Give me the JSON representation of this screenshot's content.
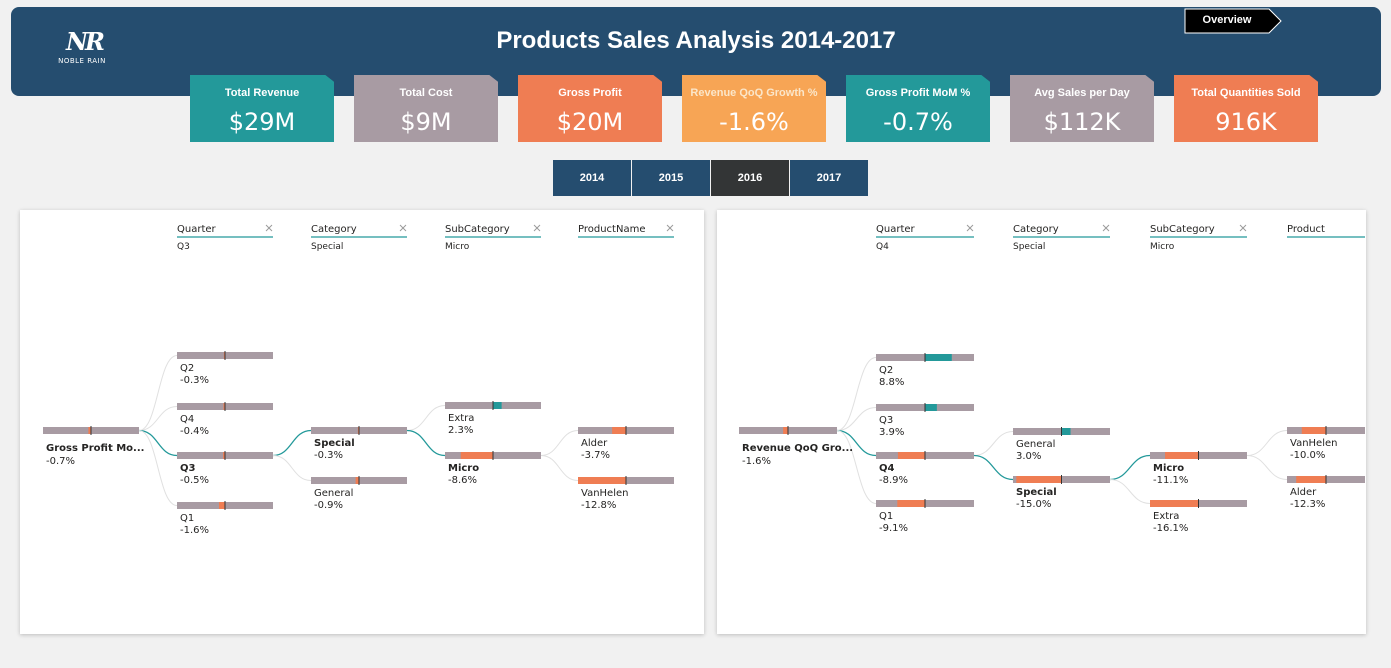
{
  "header": {
    "title": "Products Sales Analysis 2014-2017",
    "logo": {
      "mark": "NR",
      "brand": "NOBLE RAIN"
    },
    "overview_label": "Overview"
  },
  "kpis": [
    {
      "label": "Total Revenue",
      "value": "$29M",
      "color": "#23999a",
      "label_color": "#ffffff"
    },
    {
      "label": "Total Cost",
      "value": "$9M",
      "color": "#a89ba3",
      "label_color": "#ffffff"
    },
    {
      "label": "Gross Profit",
      "value": "$20M",
      "color": "#ef7d53",
      "label_color": "#ffffff"
    },
    {
      "label": "Revenue QoQ Growth %",
      "value": "-1.6%",
      "color": "#f7a555",
      "label_color": "#fbe6c9"
    },
    {
      "label": "Gross Profit MoM %",
      "value": "-0.7%",
      "color": "#23999a",
      "label_color": "#ffffff"
    },
    {
      "label": "Avg Sales per Day",
      "value": "$112K",
      "color": "#a89ba3",
      "label_color": "#ffffff"
    },
    {
      "label": "Total Quantities Sold",
      "value": "916K",
      "color": "#ef7d53",
      "label_color": "#ffffff"
    }
  ],
  "year_tabs": [
    "2014",
    "2015",
    "2016",
    "2017"
  ],
  "selected_year": "2016",
  "colors": {
    "negative": "#ef7d53",
    "positive": "#23999a",
    "track": "#a89ba3",
    "link": "#23999a",
    "link_inactive": "#e0e0e0"
  },
  "trees": [
    {
      "root": {
        "label": "Gross Profit Mo...",
        "value": "-0.7%",
        "pct": -0.7
      },
      "levels": [
        {
          "header": "Quarter",
          "selected": "Q3",
          "closable": true,
          "nodes": [
            {
              "label": "Q2",
              "value": "-0.3%",
              "pct": -0.3
            },
            {
              "label": "Q4",
              "value": "-0.4%",
              "pct": -0.4
            },
            {
              "label": "Q3",
              "value": "-0.5%",
              "pct": -0.5,
              "active": true
            },
            {
              "label": "Q1",
              "value": "-1.6%",
              "pct": -1.6
            }
          ]
        },
        {
          "header": "Category",
          "selected": "Special",
          "closable": true,
          "nodes": [
            {
              "label": "Special",
              "value": "-0.3%",
              "pct": -0.3,
              "active": true
            },
            {
              "label": "General",
              "value": "-0.9%",
              "pct": -0.9
            }
          ]
        },
        {
          "header": "SubCategory",
          "selected": "Micro",
          "closable": true,
          "nodes": [
            {
              "label": "Extra",
              "value": "2.3%",
              "pct": 2.3
            },
            {
              "label": "Micro",
              "value": "-8.6%",
              "pct": -8.6,
              "active": true
            }
          ]
        },
        {
          "header": "ProductName",
          "selected": "",
          "closable": true,
          "nodes": [
            {
              "label": "Alder",
              "value": "-3.7%",
              "pct": -3.7
            },
            {
              "label": "VanHelen",
              "value": "-12.8%",
              "pct": -12.8
            }
          ]
        }
      ]
    },
    {
      "root": {
        "label": "Revenue QoQ Gro...",
        "value": "-1.6%",
        "pct": -1.6
      },
      "levels": [
        {
          "header": "Quarter",
          "selected": "Q4",
          "closable": true,
          "nodes": [
            {
              "label": "Q2",
              "value": "8.8%",
              "pct": 8.8
            },
            {
              "label": "Q3",
              "value": "3.9%",
              "pct": 3.9
            },
            {
              "label": "Q4",
              "value": "-8.9%",
              "pct": -8.9,
              "active": true
            },
            {
              "label": "Q1",
              "value": "-9.1%",
              "pct": -9.1
            }
          ]
        },
        {
          "header": "Category",
          "selected": "Special",
          "closable": true,
          "nodes": [
            {
              "label": "General",
              "value": "3.0%",
              "pct": 3.0
            },
            {
              "label": "Special",
              "value": "-15.0%",
              "pct": -15.0,
              "active": true
            }
          ]
        },
        {
          "header": "SubCategory",
          "selected": "Micro",
          "closable": true,
          "nodes": [
            {
              "label": "Micro",
              "value": "-11.1%",
              "pct": -11.1,
              "active": true
            },
            {
              "label": "Extra",
              "value": "-16.1%",
              "pct": -16.1
            }
          ]
        },
        {
          "header": "Product",
          "selected": "",
          "closable": false,
          "nodes": [
            {
              "label": "VanHelen",
              "value": "-10.0%",
              "pct": -10.0
            },
            {
              "label": "Alder",
              "value": "-12.3%",
              "pct": -12.3
            }
          ]
        }
      ]
    }
  ]
}
